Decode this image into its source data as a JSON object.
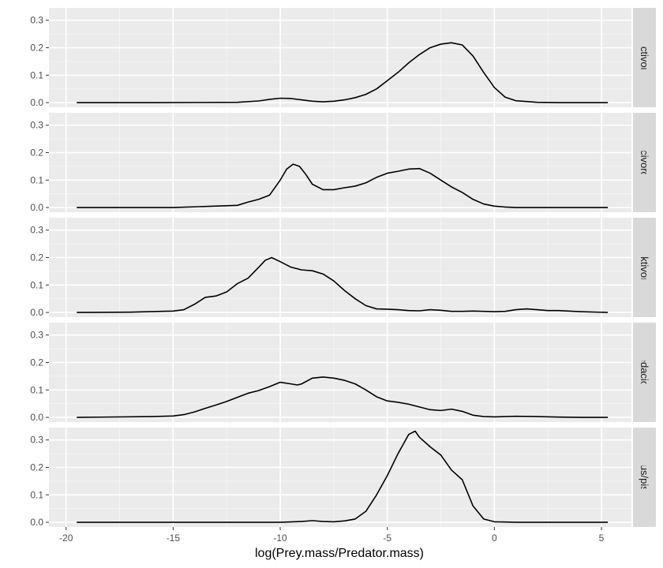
{
  "chart_data": {
    "type": "line",
    "subtype": "faceted-density",
    "title": "",
    "xlabel": "log(Prey.mass/Predator.mass)",
    "ylabel": "",
    "xlim": [
      -20.8,
      6.4
    ],
    "ylim": [
      -0.017,
      0.345
    ],
    "x_ticks": [
      {
        "value": -20,
        "label": "-20"
      },
      {
        "value": -15,
        "label": "-15"
      },
      {
        "value": -10,
        "label": "-10"
      },
      {
        "value": -5,
        "label": "-5"
      },
      {
        "value": 0,
        "label": "0"
      },
      {
        "value": 5,
        "label": "5"
      }
    ],
    "y_ticks": [
      {
        "value": 0,
        "label": "0.0"
      },
      {
        "value": 0.1,
        "label": "0.1"
      },
      {
        "value": 0.2,
        "label": "0.2"
      },
      {
        "value": 0.3,
        "label": "0.3"
      }
    ],
    "grid": true,
    "facets": [
      {
        "label": "insectivorous",
        "x": [
          -19.5,
          -16,
          -12,
          -11,
          -10.5,
          -10,
          -9.5,
          -9,
          -8.5,
          -8,
          -7.5,
          -7,
          -6.5,
          -6,
          -5.5,
          -5,
          -4.5,
          -4,
          -3.5,
          -3,
          -2.5,
          -2,
          -1.5,
          -1,
          -0.5,
          0,
          0.5,
          1,
          2,
          3,
          4,
          5.3
        ],
        "y": [
          0,
          0,
          0.001,
          0.006,
          0.012,
          0.016,
          0.015,
          0.01,
          0.005,
          0.003,
          0.005,
          0.01,
          0.018,
          0.03,
          0.05,
          0.08,
          0.11,
          0.145,
          0.175,
          0.2,
          0.213,
          0.218,
          0.21,
          0.17,
          0.11,
          0.055,
          0.02,
          0.007,
          0.001,
          0,
          0,
          0
        ]
      },
      {
        "label": "piscivorous",
        "x": [
          -19.5,
          -15,
          -12,
          -11.5,
          -11,
          -10.5,
          -10,
          -9.7,
          -9.4,
          -9.1,
          -8.8,
          -8.5,
          -8,
          -7.5,
          -7,
          -6.5,
          -6,
          -5.5,
          -5,
          -4.5,
          -4,
          -3.5,
          -3,
          -2.5,
          -2,
          -1.5,
          -1,
          -0.5,
          0,
          0.5,
          1,
          2,
          3,
          4,
          5.3
        ],
        "y": [
          0,
          0,
          0.008,
          0.02,
          0.03,
          0.045,
          0.1,
          0.14,
          0.158,
          0.15,
          0.12,
          0.085,
          0.065,
          0.065,
          0.072,
          0.078,
          0.09,
          0.11,
          0.125,
          0.132,
          0.14,
          0.142,
          0.125,
          0.1,
          0.075,
          0.055,
          0.03,
          0.013,
          0.005,
          0.002,
          0,
          0,
          0,
          0,
          0
        ]
      },
      {
        "label": "planktivorous",
        "x": [
          -19.5,
          -17,
          -15,
          -14.5,
          -14,
          -13.5,
          -13,
          -12.5,
          -12,
          -11.5,
          -11,
          -10.7,
          -10.4,
          -10,
          -9.5,
          -9,
          -8.5,
          -8,
          -7.5,
          -7,
          -6.5,
          -6,
          -5.5,
          -5,
          -4.5,
          -4,
          -3.5,
          -3,
          -2.5,
          -2,
          -1.5,
          -1,
          0,
          0.5,
          1,
          1.5,
          2,
          2.5,
          3,
          4,
          5.3
        ],
        "y": [
          0,
          0.001,
          0.005,
          0.01,
          0.03,
          0.055,
          0.06,
          0.075,
          0.105,
          0.125,
          0.165,
          0.19,
          0.2,
          0.185,
          0.165,
          0.155,
          0.152,
          0.14,
          0.115,
          0.08,
          0.05,
          0.025,
          0.013,
          0.012,
          0.01,
          0.007,
          0.006,
          0.01,
          0.008,
          0.004,
          0.004,
          0.005,
          0.003,
          0.004,
          0.01,
          0.013,
          0.01,
          0.007,
          0.007,
          0.003,
          0
        ]
      },
      {
        "label": "predacious",
        "x": [
          -19.5,
          -16,
          -15,
          -14.5,
          -14,
          -13.5,
          -13,
          -12.5,
          -12,
          -11.5,
          -11,
          -10.5,
          -10,
          -9.5,
          -9.2,
          -9,
          -8.5,
          -8,
          -7.5,
          -7,
          -6.5,
          -6,
          -5.5,
          -5,
          -4.5,
          -4,
          -3.5,
          -3,
          -2.5,
          -2,
          -1.5,
          -1,
          -0.5,
          0,
          1,
          2,
          3,
          4,
          5.3
        ],
        "y": [
          0,
          0.003,
          0.005,
          0.01,
          0.02,
          0.033,
          0.045,
          0.058,
          0.073,
          0.088,
          0.098,
          0.112,
          0.128,
          0.122,
          0.118,
          0.122,
          0.143,
          0.147,
          0.143,
          0.135,
          0.122,
          0.1,
          0.075,
          0.06,
          0.055,
          0.048,
          0.038,
          0.028,
          0.025,
          0.03,
          0.022,
          0.008,
          0.003,
          0.002,
          0.004,
          0.003,
          0.001,
          0,
          0
        ]
      },
      {
        "label": "predacious/piscivorous",
        "x": [
          -19.5,
          -10,
          -9,
          -8.5,
          -8,
          -7.5,
          -7,
          -6.5,
          -6,
          -5.5,
          -5,
          -4.5,
          -4,
          -3.7,
          -3.5,
          -3,
          -2.5,
          -2,
          -1.5,
          -1,
          -0.5,
          0,
          1,
          2,
          3,
          4,
          5.3
        ],
        "y": [
          0,
          0,
          0.003,
          0.006,
          0.003,
          0.002,
          0.005,
          0.012,
          0.04,
          0.1,
          0.17,
          0.25,
          0.32,
          0.332,
          0.31,
          0.275,
          0.245,
          0.19,
          0.155,
          0.06,
          0.012,
          0.002,
          0,
          0,
          0,
          0,
          0
        ]
      }
    ]
  }
}
